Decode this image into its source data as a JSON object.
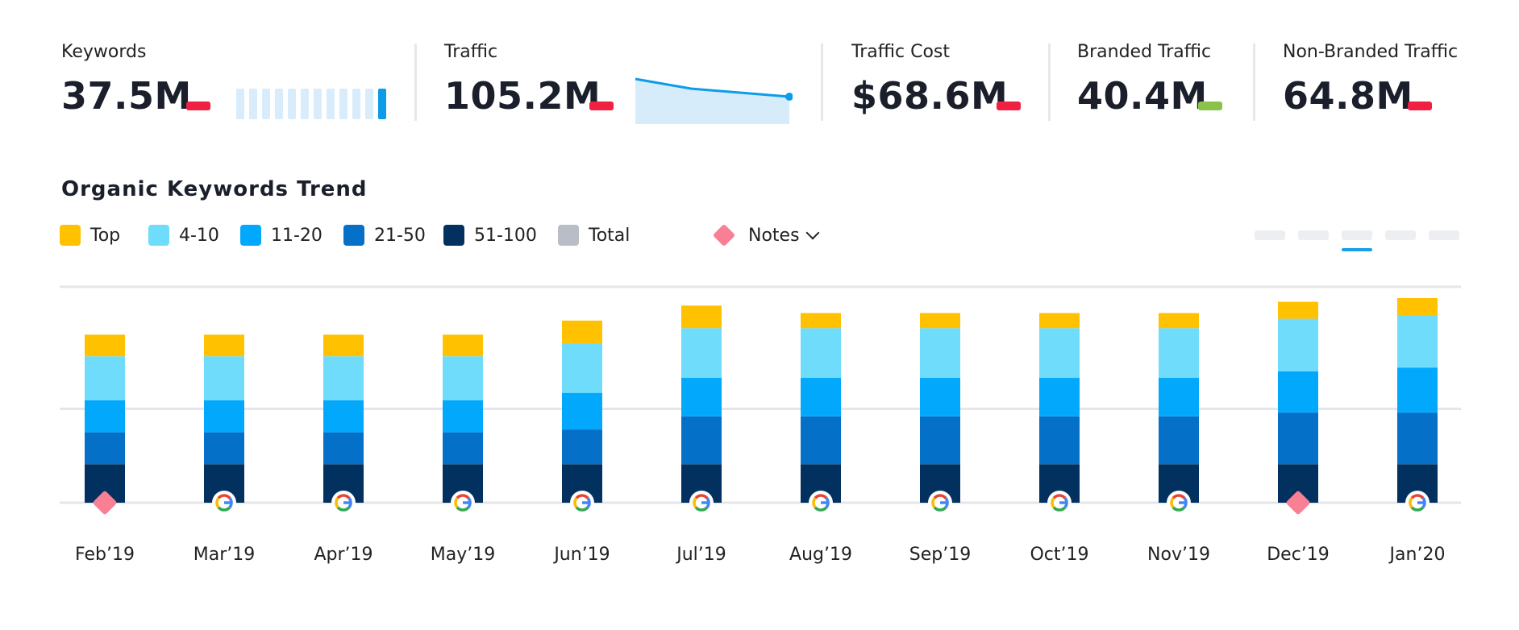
{
  "kpis": [
    {
      "label": "Keywords",
      "value": "37.5M",
      "delta_color": "#f02043"
    },
    {
      "label": "Traffic",
      "value": "105.2M",
      "delta_color": "#f02043"
    },
    {
      "label": "Traffic Cost",
      "value": "$68.6M",
      "delta_color": "#f02043"
    },
    {
      "label": "Branded Traffic",
      "value": "40.4M",
      "delta_color": "#8bc34a"
    },
    {
      "label": "Non-Branded Traffic",
      "value": "64.8M",
      "delta_color": "#f02043"
    }
  ],
  "section_title": "Organic Keywords Trend",
  "legend": [
    {
      "label": "Top",
      "color": "#ffc100"
    },
    {
      "label": "4-10",
      "color": "#6fdcfc"
    },
    {
      "label": "11-20",
      "color": "#02a8fc"
    },
    {
      "label": "21-50",
      "color": "#0570c8"
    },
    {
      "label": "51-100",
      "color": "#02305f"
    },
    {
      "label": "Total",
      "color": "#b8bdc6"
    }
  ],
  "notes_label": "Notes",
  "notes_color": "#f87f94",
  "chart_data": {
    "type": "bar",
    "stacked": true,
    "categories": [
      "Feb’19",
      "Mar’19",
      "Apr’19",
      "May’19",
      "Jun’19",
      "Jul’19",
      "Aug’19",
      "Sep’19",
      "Oct’19",
      "Nov’19",
      "Dec’19",
      "Jan’20"
    ],
    "series": [
      {
        "name": "51-100",
        "values": [
          41,
          41,
          41,
          41,
          41,
          41,
          41,
          41,
          41,
          41,
          41,
          41
        ]
      },
      {
        "name": "21-50",
        "values": [
          34,
          34,
          34,
          34,
          37,
          51,
          51,
          51,
          51,
          51,
          55,
          55
        ]
      },
      {
        "name": "11-20",
        "values": [
          34,
          34,
          34,
          34,
          39,
          41,
          41,
          41,
          41,
          41,
          44,
          48
        ]
      },
      {
        "name": "4-10",
        "values": [
          47,
          47,
          47,
          47,
          53,
          53,
          53,
          53,
          53,
          53,
          56,
          56
        ]
      },
      {
        "name": "Top",
        "values": [
          23,
          23,
          23,
          23,
          24,
          24,
          16,
          16,
          16,
          16,
          18,
          18
        ]
      }
    ],
    "ylim": [
      0,
      230
    ],
    "gridlines": [
      0,
      100,
      230
    ],
    "markers": [
      "note",
      "google",
      "google",
      "google",
      "google",
      "google",
      "google",
      "google",
      "google",
      "google",
      "note",
      "google"
    ]
  }
}
